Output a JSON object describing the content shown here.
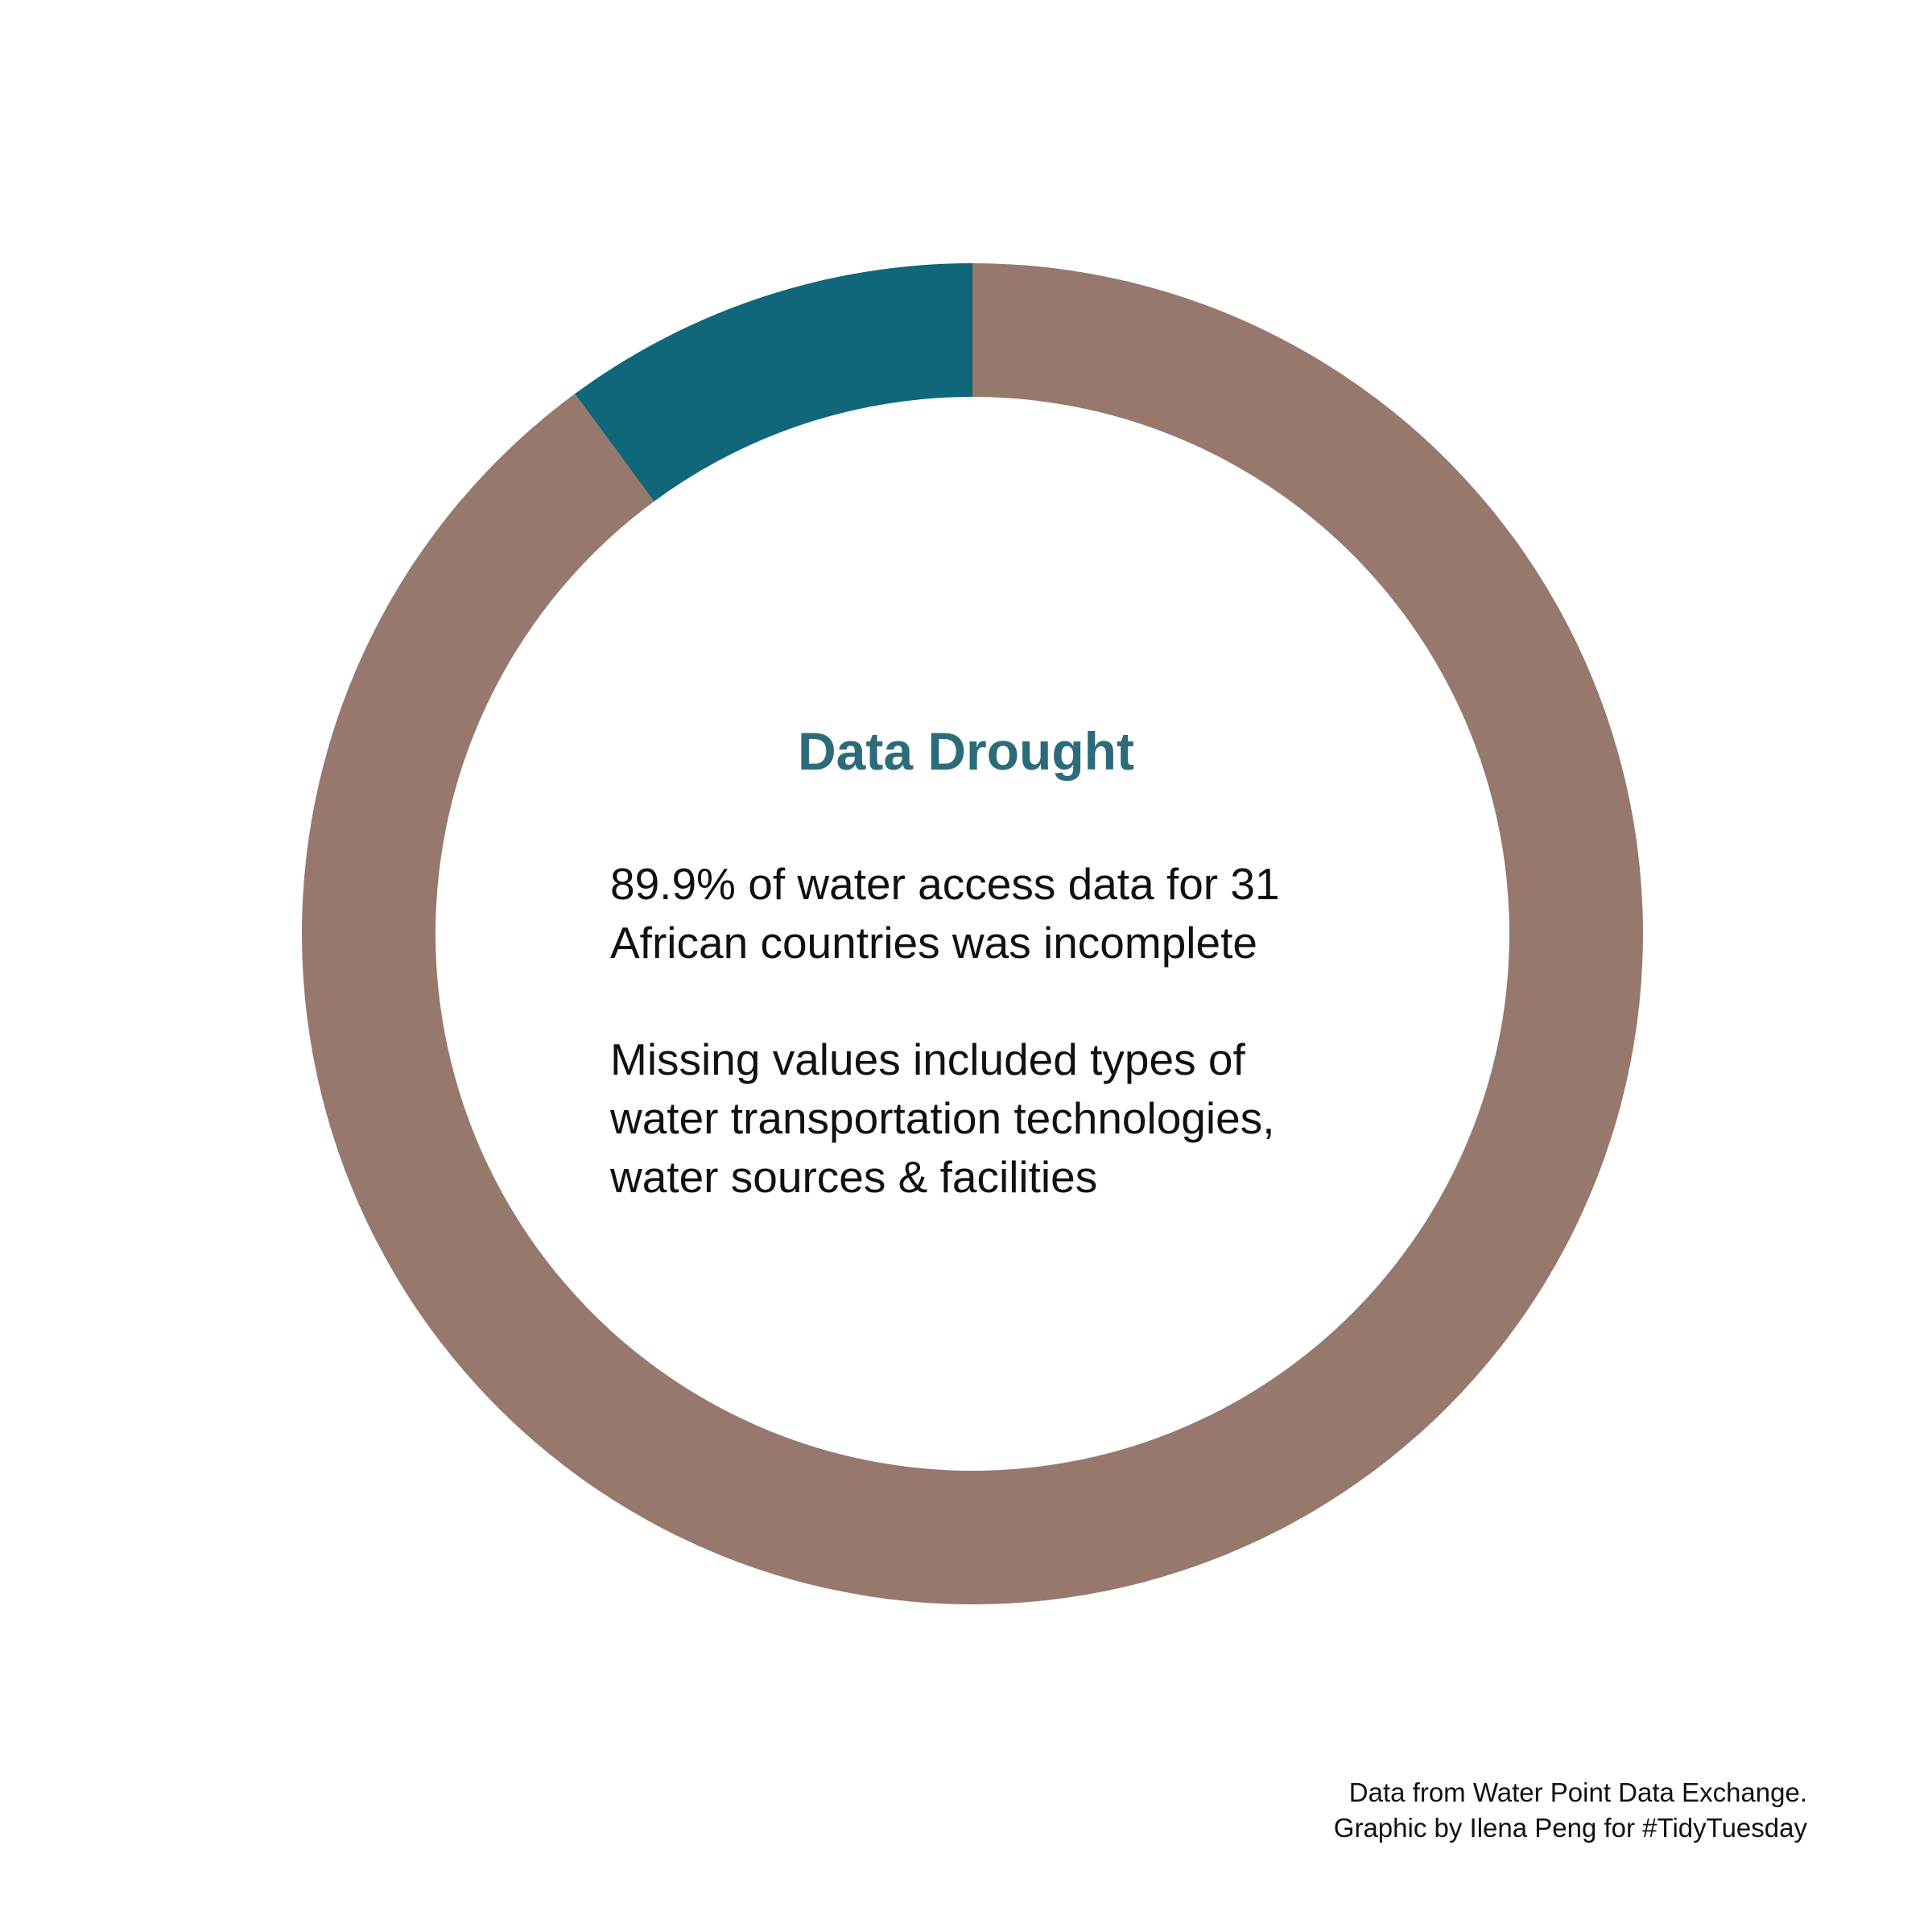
{
  "chart_data": {
    "type": "pie",
    "style": "donut",
    "slices": [
      {
        "label": "",
        "value": 89.9,
        "color": "#96786d"
      },
      {
        "label": "",
        "value": 10.1,
        "color": "#10677a"
      }
    ],
    "title": "Data Drought",
    "legend": "none"
  },
  "center_text": {
    "paragraph1": [
      "89.9% of water access data for 31",
      "African countries was incomplete"
    ],
    "paragraph2": [
      "Missing values included types of",
      "water transportation technologies,",
      "water sources & facilities"
    ]
  },
  "caption": {
    "line1": "Data from Water Point Data Exchange.",
    "line2": "Graphic by Ilena Peng for #TidyTuesday"
  }
}
